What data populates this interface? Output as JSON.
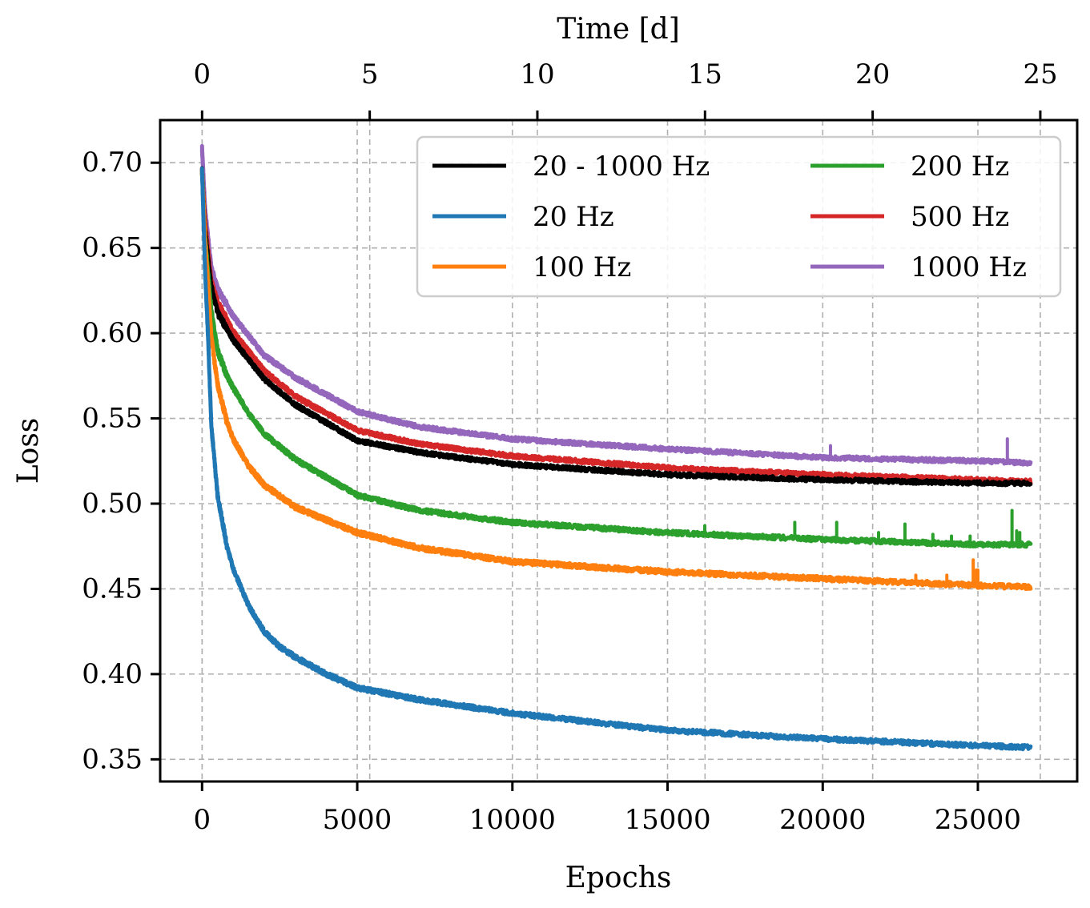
{
  "chart_data": {
    "type": "line",
    "xlabel": "Epochs",
    "ylabel": "Loss",
    "x2label": "Time [d]",
    "xlim": [
      -1350,
      28200
    ],
    "ylim": [
      0.337,
      0.725
    ],
    "x2lim": [
      -1.25,
      26.1
    ],
    "xticks": [
      0,
      5000,
      10000,
      15000,
      20000,
      25000
    ],
    "xtick_labels": [
      "0",
      "5000",
      "10000",
      "15000",
      "20000",
      "25000"
    ],
    "x2ticks": [
      0,
      5,
      10,
      15,
      20,
      25
    ],
    "x2tick_labels": [
      "0",
      "5",
      "10",
      "15",
      "20",
      "25"
    ],
    "yticks": [
      0.35,
      0.4,
      0.45,
      0.5,
      0.55,
      0.6,
      0.65,
      0.7
    ],
    "ytick_labels": [
      "0.35",
      "0.40",
      "0.45",
      "0.50",
      "0.55",
      "0.60",
      "0.65",
      "0.70"
    ],
    "grid": true,
    "legend_position": "top-right",
    "series": [
      {
        "name": "20 - 1000 Hz",
        "color": "#000000",
        "x": [
          0,
          100,
          300,
          500,
          1000,
          2000,
          3000,
          5000,
          7000,
          10000,
          15000,
          20000,
          25000,
          26700
        ],
        "values": [
          0.695,
          0.66,
          0.627,
          0.612,
          0.596,
          0.573,
          0.558,
          0.537,
          0.53,
          0.523,
          0.517,
          0.514,
          0.512,
          0.512
        ],
        "noise": 0.0012,
        "spikes": []
      },
      {
        "name": "20 Hz",
        "color": "#1f77b4",
        "x": [
          0,
          100,
          200,
          300,
          500,
          800,
          1000,
          1500,
          2000,
          2500,
          3000,
          4000,
          5000,
          7000,
          10000,
          15000,
          20000,
          25000,
          26700
        ],
        "values": [
          0.695,
          0.635,
          0.595,
          0.545,
          0.505,
          0.475,
          0.462,
          0.44,
          0.425,
          0.416,
          0.41,
          0.4,
          0.392,
          0.385,
          0.377,
          0.367,
          0.362,
          0.358,
          0.357
        ],
        "noise": 0.0013,
        "spikes": []
      },
      {
        "name": "100 Hz",
        "color": "#ff7f0e",
        "x": [
          0,
          100,
          300,
          500,
          800,
          1000,
          1500,
          2000,
          3000,
          5000,
          7000,
          10000,
          15000,
          20000,
          25000,
          26700
        ],
        "values": [
          0.695,
          0.655,
          0.597,
          0.57,
          0.548,
          0.538,
          0.522,
          0.511,
          0.498,
          0.483,
          0.474,
          0.466,
          0.46,
          0.456,
          0.452,
          0.451
        ],
        "noise": 0.0014,
        "spikes": [
          [
            23000,
            0.458
          ],
          [
            24000,
            0.458
          ],
          [
            24850,
            0.467
          ],
          [
            24950,
            0.461
          ],
          [
            25000,
            0.461
          ]
        ]
      },
      {
        "name": "200 Hz",
        "color": "#2ca02c",
        "x": [
          0,
          100,
          300,
          500,
          800,
          1000,
          1500,
          2000,
          3000,
          5000,
          7000,
          10000,
          15000,
          20000,
          25000,
          26700
        ],
        "values": [
          0.695,
          0.655,
          0.613,
          0.59,
          0.575,
          0.568,
          0.553,
          0.541,
          0.526,
          0.505,
          0.496,
          0.489,
          0.483,
          0.479,
          0.476,
          0.476
        ],
        "noise": 0.0013,
        "spikes": [
          [
            16200,
            0.487
          ],
          [
            19100,
            0.489
          ],
          [
            20450,
            0.489
          ],
          [
            21800,
            0.483
          ],
          [
            22650,
            0.488
          ],
          [
            23550,
            0.482
          ],
          [
            24150,
            0.481
          ],
          [
            24750,
            0.481
          ],
          [
            26100,
            0.496
          ],
          [
            26250,
            0.484
          ],
          [
            26350,
            0.483
          ]
        ]
      },
      {
        "name": "500 Hz",
        "color": "#d62728",
        "x": [
          0,
          100,
          300,
          500,
          1000,
          2000,
          3000,
          5000,
          7000,
          10000,
          15000,
          20000,
          25000,
          26700
        ],
        "values": [
          0.695,
          0.665,
          0.63,
          0.618,
          0.601,
          0.578,
          0.563,
          0.543,
          0.535,
          0.528,
          0.521,
          0.517,
          0.514,
          0.513
        ],
        "noise": 0.0012,
        "spikes": []
      },
      {
        "name": "1000 Hz",
        "color": "#9467bd",
        "x": [
          0,
          100,
          300,
          500,
          1000,
          2000,
          3000,
          5000,
          7000,
          10000,
          15000,
          20000,
          25000,
          26700
        ],
        "values": [
          0.708,
          0.672,
          0.638,
          0.626,
          0.61,
          0.587,
          0.574,
          0.554,
          0.545,
          0.538,
          0.532,
          0.527,
          0.525,
          0.524
        ],
        "noise": 0.0012,
        "spikes": [
          [
            20250,
            0.534
          ],
          [
            25950,
            0.538
          ]
        ]
      }
    ]
  }
}
